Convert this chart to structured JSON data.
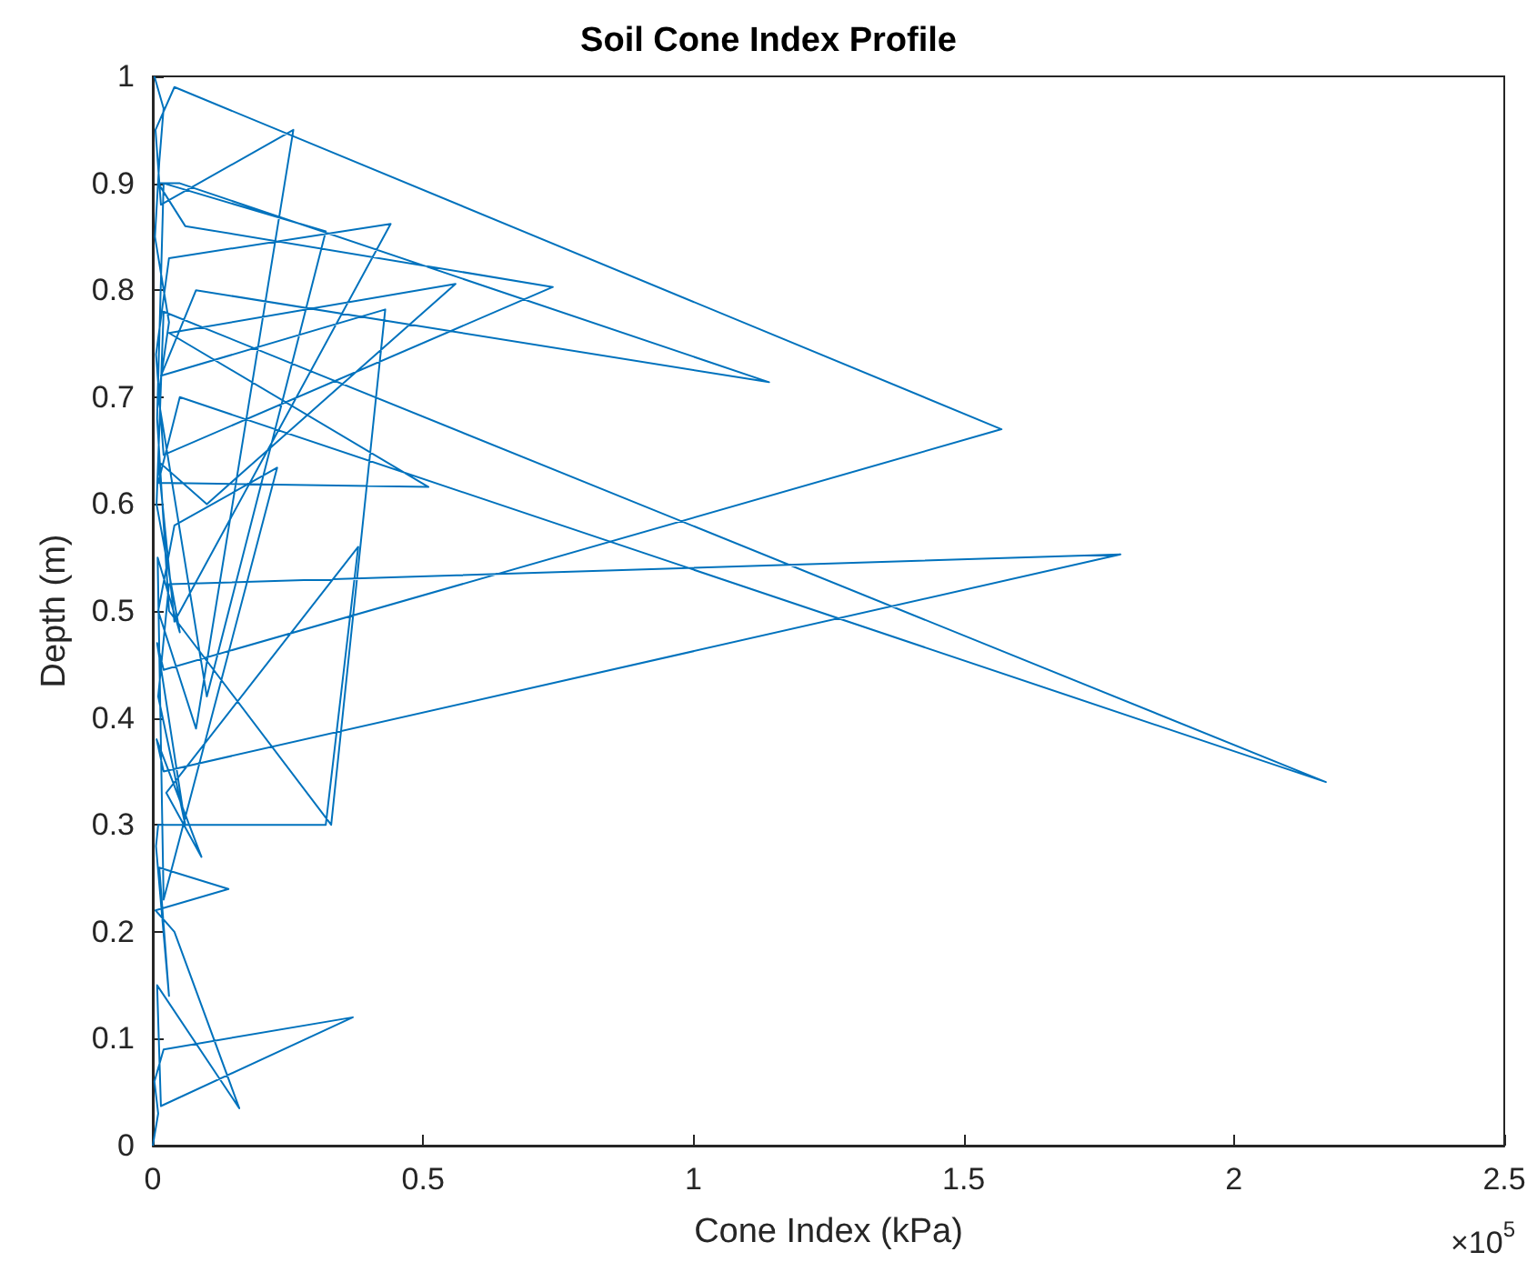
{
  "chart_data": {
    "type": "line",
    "title": "Soil Cone Index Profile",
    "xlabel": "Cone Index (kPa)",
    "ylabel": "Depth (m)",
    "annotations": [
      "×10$^{5}$"
    ],
    "xlim": [
      0,
      2.5
    ],
    "xticks": [
      0,
      0.5,
      1,
      1.5,
      2,
      2.5
    ],
    "ylim": [
      0,
      1
    ],
    "yticks": [
      0,
      0.1,
      0.2,
      0.3,
      0.4,
      0.5,
      0.6,
      0.7,
      0.8,
      0.9,
      1
    ],
    "grid": false,
    "marker": "none",
    "line_style": "solid",
    "series": [
      {
        "color": "#0072bd",
        "x": [
          0,
          0.01,
          0.003,
          0.02,
          0.37,
          0.015,
          0.008,
          0.16,
          0.04,
          0.005,
          0.14,
          0.012,
          0.03,
          0.006,
          0.01,
          0.32,
          0.38,
          0.025,
          0.09,
          0.007,
          0.02,
          1.79,
          0.03,
          0.01,
          0.06,
          0.008,
          0.02,
          1.57,
          0.04,
          0.005,
          0.015,
          0.26,
          0.08,
          0.01,
          0.04,
          0.23,
          0.02,
          0.009,
          0.05,
          0.007,
          0.02,
          2.17,
          0.05,
          0.01,
          0.51,
          0.03,
          0.56,
          0.1,
          0.01,
          0.04,
          0.44,
          0.03,
          0.006,
          0.02,
          0.74,
          0.06,
          0.01,
          0.05,
          1.14,
          0.08,
          0.015,
          0.43,
          0.33,
          0.03,
          0.008,
          0.02,
          0.32,
          0.1,
          0.01,
          0.03,
          0.004,
          0.012,
          0.02,
          0.003
        ],
        "values": [
          0,
          0.03,
          0.06,
          0.09,
          0.12,
          0.037,
          0.15,
          0.035,
          0.2,
          0.22,
          0.24,
          0.26,
          0.14,
          0.28,
          0.3,
          0.3,
          0.56,
          0.33,
          0.27,
          0.38,
          0.35,
          0.553,
          0.525,
          0.42,
          0.3,
          0.47,
          0.445,
          0.67,
          0.99,
          0.95,
          0.88,
          0.95,
          0.39,
          0.5,
          0.58,
          0.634,
          0.23,
          0.55,
          0.48,
          0.6,
          0.78,
          0.34,
          0.7,
          0.62,
          0.616,
          0.76,
          0.806,
          0.6,
          0.64,
          0.49,
          0.862,
          0.83,
          0.74,
          0.646,
          0.803,
          0.86,
          0.9,
          0.9,
          0.714,
          0.8,
          0.72,
          0.782,
          0.3,
          0.5,
          0.68,
          0.9,
          0.855,
          0.42,
          0.7,
          0.77,
          0.85,
          0.92,
          0.97,
          1
        ]
      }
    ]
  }
}
